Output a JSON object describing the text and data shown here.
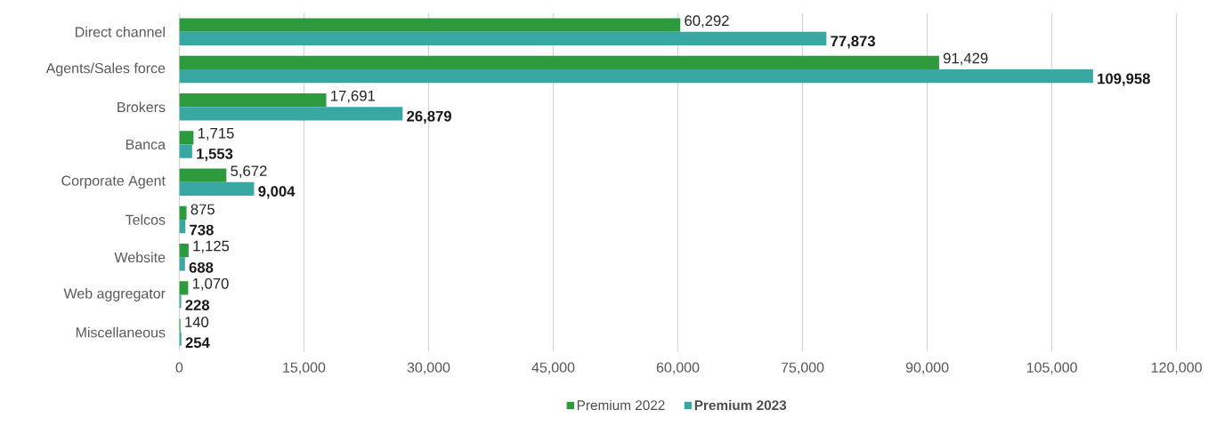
{
  "chart_data": {
    "type": "bar",
    "orientation": "horizontal",
    "categories": [
      "Direct channel",
      "Agents/Sales force",
      "Brokers",
      "Banca",
      "Corporate Agent",
      "Telcos",
      "Website",
      "Web aggregator",
      "Miscellaneous"
    ],
    "series": [
      {
        "name": "Premium 2022",
        "color": "#2e9a3e",
        "values": [
          60292,
          91429,
          17691,
          1715,
          5672,
          875,
          1125,
          1070,
          140
        ],
        "value_labels": [
          "60,292",
          "91,429",
          "17,691",
          "1,715",
          "5,672",
          "875",
          "1,125",
          "1,070",
          "140"
        ]
      },
      {
        "name": "Premium 2023",
        "color": "#3aa8a2",
        "values": [
          77873,
          109958,
          26879,
          1553,
          9004,
          738,
          688,
          228,
          254
        ],
        "value_labels": [
          "77,873",
          "109,958",
          "26,879",
          "1,553",
          "9,004",
          "738",
          "688",
          "228",
          "254"
        ]
      }
    ],
    "xlim": [
      0,
      120000
    ],
    "xticks": [
      0,
      {
        "value": 15000,
        "label": "15,000"
      },
      {
        "value": 30000,
        "label": "30,000"
      },
      {
        "value": 45000,
        "label": "45,000"
      },
      {
        "value": 60000,
        "label": "60,000"
      },
      {
        "value": 75000,
        "label": "75,000"
      },
      {
        "value": 90000,
        "label": "90,000"
      },
      {
        "value": 105000,
        "label": "105,000"
      },
      {
        "value": 120000,
        "label": "120,000"
      }
    ],
    "grid": "x",
    "legend": "bottom"
  }
}
